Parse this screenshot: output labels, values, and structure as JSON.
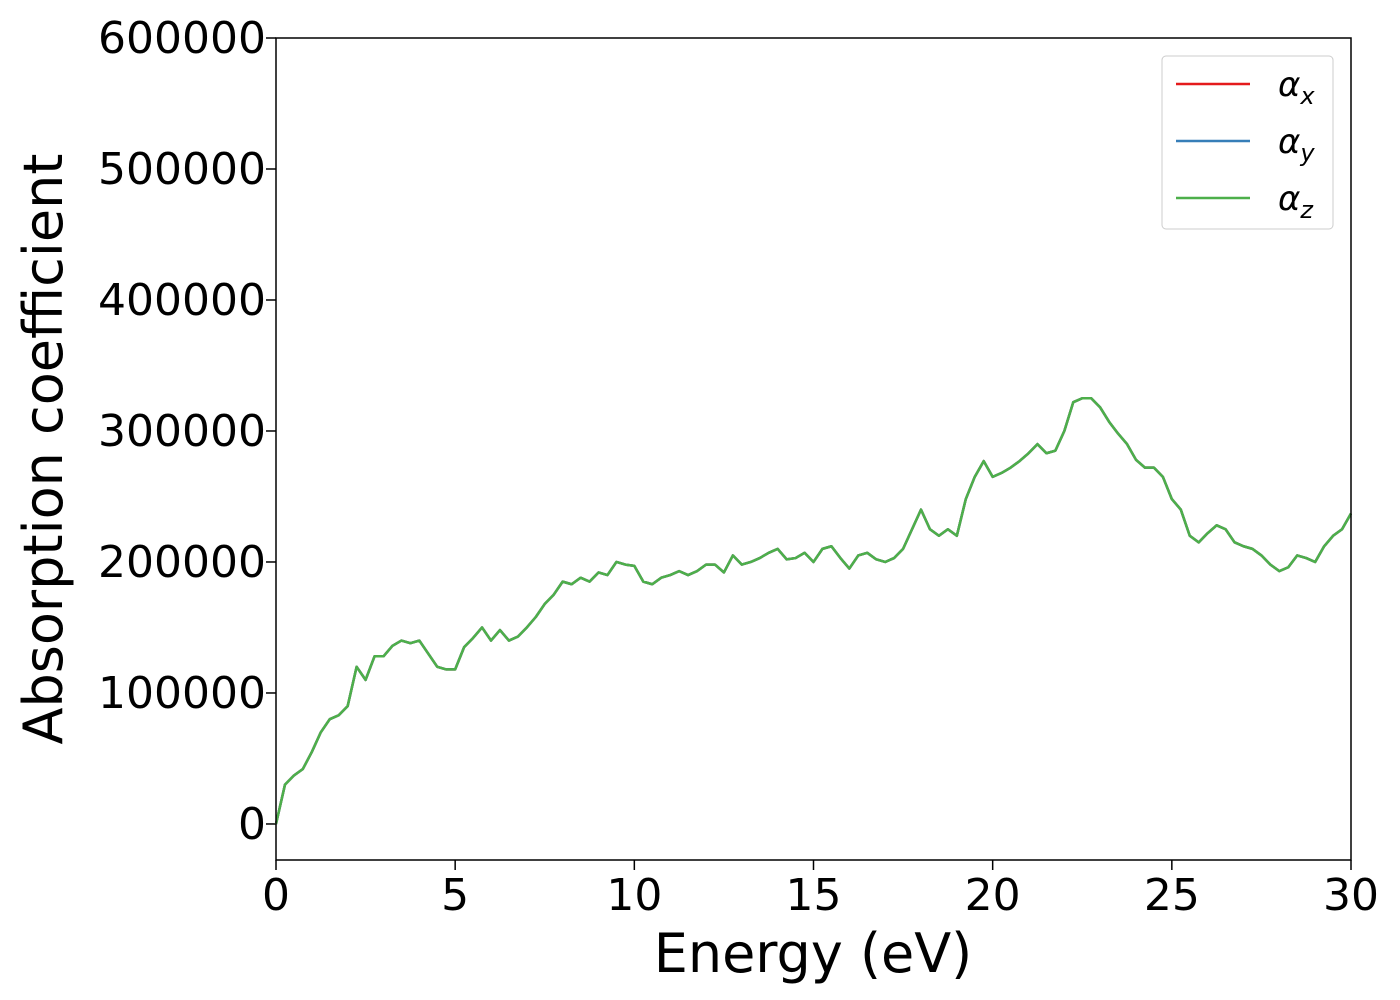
{
  "chart_data": {
    "type": "line",
    "xlabel": "Energy (eV)",
    "ylabel": "Absorption coefficient",
    "x": [
      0,
      0.25,
      0.5,
      0.75,
      1,
      1.25,
      1.5,
      1.75,
      2,
      2.25,
      2.5,
      2.75,
      3,
      3.25,
      3.5,
      3.75,
      4,
      4.25,
      4.5,
      4.75,
      5,
      5.25,
      5.5,
      5.75,
      6,
      6.25,
      6.5,
      6.75,
      7,
      7.25,
      7.5,
      7.75,
      8,
      8.25,
      8.5,
      8.75,
      9,
      9.25,
      9.5,
      9.75,
      10,
      10.25,
      10.5,
      10.75,
      11,
      11.25,
      11.5,
      11.75,
      12,
      12.25,
      12.5,
      12.75,
      13,
      13.25,
      13.5,
      13.75,
      14,
      14.25,
      14.5,
      14.75,
      15,
      15.25,
      15.5,
      15.75,
      16,
      16.25,
      16.5,
      16.75,
      17,
      17.25,
      17.5,
      17.75,
      18,
      18.25,
      18.5,
      18.75,
      19,
      19.25,
      19.5,
      19.75,
      20,
      20.25,
      20.5,
      20.75,
      21,
      21.25,
      21.5,
      21.75,
      22,
      22.25,
      22.5,
      22.75,
      23,
      23.25,
      23.5,
      23.75,
      24,
      24.25,
      24.5,
      24.75,
      25,
      25.25,
      25.5,
      25.75,
      26,
      26.25,
      26.5,
      26.75,
      27,
      27.25,
      27.5,
      27.75,
      28,
      28.25,
      28.5,
      28.75,
      29,
      29.25,
      29.5,
      29.75,
      30
    ],
    "series": [
      {
        "name": "αx",
        "color": "#e41a1c",
        "values": [
          0,
          30000,
          37000,
          42000,
          55000,
          70000,
          80000,
          83000,
          90000,
          120000,
          110000,
          128000,
          128000,
          136000,
          140000,
          138000,
          140000,
          130000,
          120000,
          118000,
          118000,
          135000,
          142000,
          150000,
          140000,
          148000,
          140000,
          143000,
          150000,
          158000,
          168000,
          175000,
          185000,
          183000,
          188000,
          185000,
          192000,
          190000,
          200000,
          198000,
          197000,
          185000,
          183000,
          188000,
          190000,
          193000,
          190000,
          193000,
          198000,
          198000,
          192000,
          205000,
          198000,
          200000,
          203000,
          207000,
          210000,
          202000,
          203000,
          207000,
          200000,
          210000,
          212000,
          203000,
          195000,
          205000,
          207000,
          202000,
          200000,
          203000,
          210000,
          225000,
          240000,
          225000,
          220000,
          225000,
          220000,
          248000,
          265000,
          277000,
          265000,
          268000,
          272000,
          277000,
          283000,
          290000,
          283000,
          285000,
          300000,
          322000,
          325000,
          325000,
          318000,
          307000,
          298000,
          290000,
          278000,
          272000,
          272000,
          265000,
          248000,
          240000,
          220000,
          215000,
          222000,
          228000,
          225000,
          215000,
          212000,
          210000,
          205000,
          198000,
          193000,
          196000,
          205000,
          203000,
          200000,
          212000,
          220000,
          225000,
          237000
        ]
      },
      {
        "name": "αy",
        "color": "#377eb8",
        "values": [
          0,
          30000,
          37000,
          42000,
          55000,
          70000,
          80000,
          83000,
          90000,
          120000,
          110000,
          128000,
          128000,
          136000,
          140000,
          138000,
          140000,
          130000,
          120000,
          118000,
          118000,
          135000,
          142000,
          150000,
          140000,
          148000,
          140000,
          143000,
          150000,
          158000,
          168000,
          175000,
          185000,
          183000,
          188000,
          185000,
          192000,
          190000,
          200000,
          198000,
          197000,
          185000,
          183000,
          188000,
          190000,
          193000,
          190000,
          193000,
          198000,
          198000,
          192000,
          205000,
          198000,
          200000,
          203000,
          207000,
          210000,
          202000,
          203000,
          207000,
          200000,
          210000,
          212000,
          203000,
          195000,
          205000,
          207000,
          202000,
          200000,
          203000,
          210000,
          225000,
          240000,
          225000,
          220000,
          225000,
          220000,
          248000,
          265000,
          277000,
          265000,
          268000,
          272000,
          277000,
          283000,
          290000,
          283000,
          285000,
          300000,
          322000,
          325000,
          325000,
          318000,
          307000,
          298000,
          290000,
          278000,
          272000,
          272000,
          265000,
          248000,
          240000,
          220000,
          215000,
          222000,
          228000,
          225000,
          215000,
          212000,
          210000,
          205000,
          198000,
          193000,
          196000,
          205000,
          203000,
          200000,
          212000,
          220000,
          225000,
          237000
        ]
      },
      {
        "name": "αz",
        "color": "#4daf4a",
        "values": [
          0,
          30000,
          37000,
          42000,
          55000,
          70000,
          80000,
          83000,
          90000,
          120000,
          110000,
          128000,
          128000,
          136000,
          140000,
          138000,
          140000,
          130000,
          120000,
          118000,
          118000,
          135000,
          142000,
          150000,
          140000,
          148000,
          140000,
          143000,
          150000,
          158000,
          168000,
          175000,
          185000,
          183000,
          188000,
          185000,
          192000,
          190000,
          200000,
          198000,
          197000,
          185000,
          183000,
          188000,
          190000,
          193000,
          190000,
          193000,
          198000,
          198000,
          192000,
          205000,
          198000,
          200000,
          203000,
          207000,
          210000,
          202000,
          203000,
          207000,
          200000,
          210000,
          212000,
          203000,
          195000,
          205000,
          207000,
          202000,
          200000,
          203000,
          210000,
          225000,
          240000,
          225000,
          220000,
          225000,
          220000,
          248000,
          265000,
          277000,
          265000,
          268000,
          272000,
          277000,
          283000,
          290000,
          283000,
          285000,
          300000,
          322000,
          325000,
          325000,
          318000,
          307000,
          298000,
          290000,
          278000,
          272000,
          272000,
          265000,
          248000,
          240000,
          220000,
          215000,
          222000,
          228000,
          225000,
          215000,
          212000,
          210000,
          205000,
          198000,
          193000,
          196000,
          205000,
          203000,
          200000,
          212000,
          220000,
          225000,
          237000
        ]
      }
    ],
    "xlim": [
      0,
      30
    ],
    "xticks": [
      0,
      5,
      10,
      15,
      20,
      25,
      30
    ],
    "ylim": [
      -27500,
      600000
    ],
    "yticks": [
      0,
      100000,
      200000,
      300000,
      400000,
      500000,
      600000
    ],
    "legend": "upper right",
    "grid": false
  }
}
